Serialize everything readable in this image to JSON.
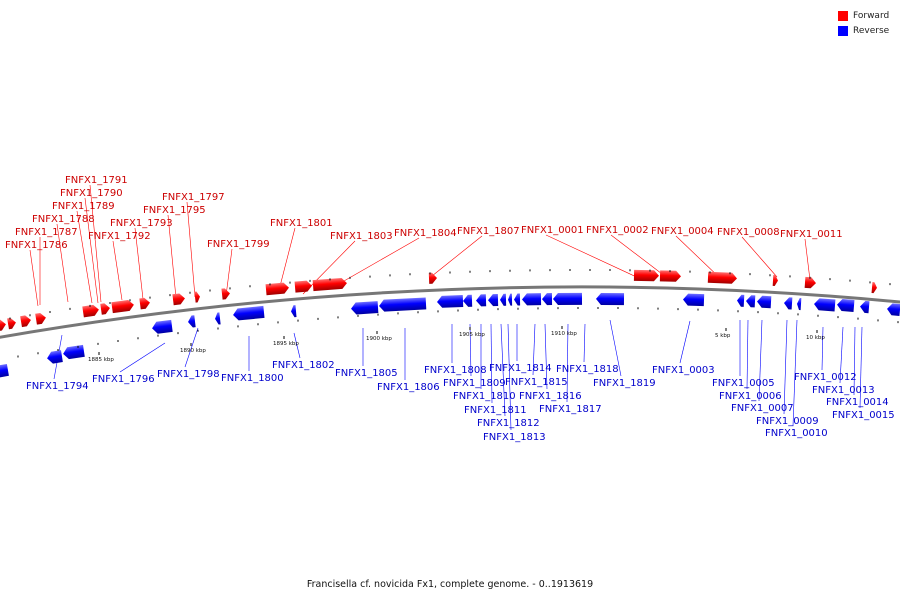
{
  "caption": "Francisella cf. novicida Fx1, complete genome. - 0..1913619",
  "legend": [
    {
      "label": "Forward",
      "color": "#ff0000"
    },
    {
      "label": "Reverse",
      "color": "#0000ff"
    }
  ],
  "colors": {
    "forward": "#ff0000",
    "reverse": "#0000ff",
    "backbone": "#777777"
  },
  "ticks": [
    "1885 kbp",
    "1890 kbp",
    "1895 kbp",
    "1900 kbp",
    "1905 kbp",
    "1910 kbp",
    "5 kbp",
    "10 kbp"
  ],
  "forward_genes": [
    "FNFX1_1786",
    "FNFX1_1787",
    "FNFX1_1788",
    "FNFX1_1789",
    "FNFX1_1790",
    "FNFX1_1791",
    "FNFX1_1792",
    "FNFX1_1793",
    "FNFX1_1795",
    "FNFX1_1797",
    "FNFX1_1799",
    "FNFX1_1801",
    "FNFX1_1803",
    "FNFX1_1804",
    "FNFX1_1807",
    "FNFX1_0001",
    "FNFX1_0002",
    "FNFX1_0004",
    "FNFX1_0008",
    "FNFX1_0011"
  ],
  "reverse_genes": [
    "FNFX1_1794",
    "FNFX1_1796",
    "FNFX1_1798",
    "FNFX1_1800",
    "FNFX1_1802",
    "FNFX1_1805",
    "FNFX1_1806",
    "FNFX1_1808",
    "FNFX1_1809",
    "FNFX1_1810",
    "FNFX1_1811",
    "FNFX1_1812",
    "FNFX1_1813",
    "FNFX1_1814",
    "FNFX1_1815",
    "FNFX1_1816",
    "FNFX1_1817",
    "FNFX1_1818",
    "FNFX1_1819",
    "FNFX1_0003",
    "FNFX1_0005",
    "FNFX1_0006",
    "FNFX1_0007",
    "FNFX1_0009",
    "FNFX1_0010",
    "FNFX1_0012",
    "FNFX1_0013",
    "FNFX1_0014",
    "FNFX1_0015"
  ]
}
